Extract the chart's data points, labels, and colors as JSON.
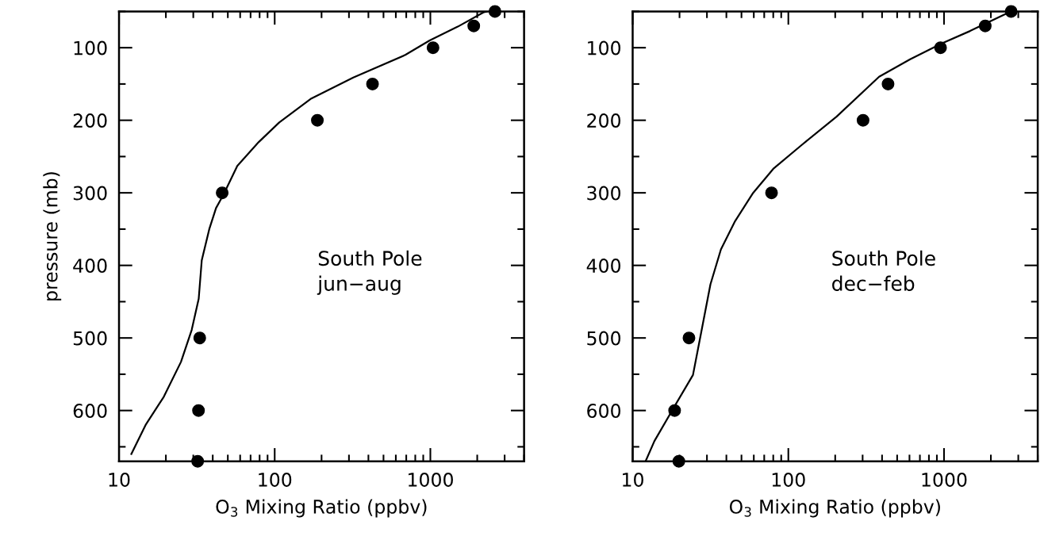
{
  "chart_data": [
    {
      "type": "line",
      "xlabel": "O$_{3}$ Mixing Ratio (ppbv)",
      "ylabel": "pressure (mb)",
      "log": "x",
      "grid": false,
      "legend": false,
      "xlim": [
        10,
        4000
      ],
      "xticks": [
        10,
        100,
        1000
      ],
      "ylim": [
        670,
        50
      ],
      "yticks": [
        {
          "value": 50,
          "label": null
        },
        100,
        {
          "value": 150,
          "label": null
        },
        200,
        {
          "value": 250,
          "label": null
        },
        300,
        {
          "value": 350,
          "label": null
        },
        400,
        {
          "value": 450,
          "label": null
        },
        500,
        {
          "value": 550,
          "label": null
        },
        600,
        {
          "value": 650,
          "label": null
        }
      ],
      "annotations": [
        "South Pole\njun−aug"
      ],
      "series": [
        {
          "color": "#000000",
          "marker": "none",
          "line_style": "solid",
          "x": [
            12.0,
            14.9,
            19.4,
            25,
            29.3,
            32.5,
            34,
            38,
            42,
            47,
            57.5,
            79,
            107,
            172,
            320,
            690,
            990,
            1500,
            2210,
            2300
          ],
          "values": [
            660,
            619,
            581,
            533,
            489,
            446,
            393,
            350,
            321,
            302,
            263,
            230,
            203,
            170,
            141,
            110,
            90,
            71,
            51,
            50
          ]
        },
        {
          "type": "scatter",
          "color": "#000000",
          "marker": "circle",
          "x": [
            2600,
            1900,
            1040,
            425,
            188,
            46,
            33,
            32.4,
            32
          ],
          "values": [
            50,
            70,
            100,
            150,
            200,
            300,
            500,
            600,
            670
          ]
        }
      ]
    },
    {
      "type": "line",
      "xlabel": "O$_{3}$ Mixing Ratio (ppbv)",
      "log": "x",
      "grid": false,
      "legend": false,
      "xlim": [
        10,
        4000
      ],
      "xticks": [
        10,
        100,
        1000
      ],
      "ylim": [
        670,
        50
      ],
      "yticks": [
        {
          "value": 50,
          "label": null
        },
        100,
        {
          "value": 150,
          "label": null
        },
        200,
        {
          "value": 250,
          "label": null
        },
        300,
        {
          "value": 350,
          "label": null
        },
        400,
        {
          "value": 450,
          "label": null
        },
        500,
        {
          "value": 550,
          "label": null
        },
        600,
        {
          "value": 650,
          "label": null
        }
      ],
      "annotations": [
        "South Pole\ndec−feb"
      ],
      "series": [
        {
          "color": "#000000",
          "marker": "none",
          "line_style": "solid",
          "x": [
            12.1,
            13.8,
            18.6,
            24.4,
            27.8,
            31.6,
            36.9,
            45.5,
            59,
            80,
            122,
            204,
            383,
            606,
            968,
            1470,
            2690
          ],
          "values": [
            670,
            642,
            594,
            551,
            488,
            426,
            378,
            339,
            301,
            267,
            234,
            195,
            140,
            116,
            94,
            77,
            50
          ]
        },
        {
          "type": "scatter",
          "color": "#000000",
          "marker": "circle",
          "x": [
            2700,
            1840,
            950,
            437,
            302,
            78,
            23,
            18.6,
            19.8
          ],
          "values": [
            50,
            70,
            100,
            150,
            200,
            300,
            500,
            600,
            670
          ]
        }
      ]
    }
  ]
}
